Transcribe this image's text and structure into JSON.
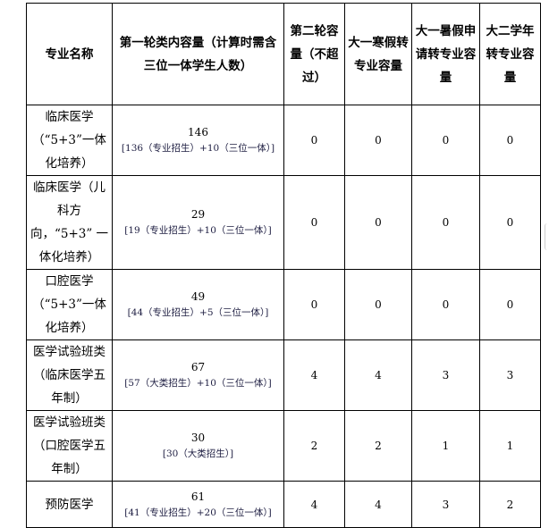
{
  "headers": [
    "专业名称",
    "第一轮类内容量（计算时需含三位一体学生人数）",
    "第二轮容量（不超过）",
    "大一寒假转专业容量",
    "大一暑假申请转专业容量",
    "大二学年转专业容量"
  ],
  "rows": [
    {
      "name": "临床医学（“5+3”一体化培养）",
      "total": "146",
      "breakdown": "[136（专业招生）+10（三位一体）]",
      "r2": "0",
      "winter": "0",
      "summer": "0",
      "year2": "0"
    },
    {
      "name": "临床医学（儿科方向，“5+3” 一体化培养）",
      "total": "29",
      "breakdown": "[19（专业招生）+10（三位一体）]",
      "r2": "0",
      "winter": "0",
      "summer": "0",
      "year2": "0"
    },
    {
      "name": "口腔医学（“5+3”一体化培养）",
      "total": "49",
      "breakdown": "[44（专业招生）+5（三位一体）]",
      "r2": "0",
      "winter": "0",
      "summer": "0",
      "year2": "0"
    },
    {
      "name": "医学试验班类（临床医学五年制）",
      "total": "67",
      "breakdown": "[57（大类招生）+10（三位一体）]",
      "r2": "4",
      "winter": "4",
      "summer": "3",
      "year2": "3"
    },
    {
      "name": "医学试验班类（口腔医学五年制）",
      "total": "30",
      "breakdown": "[30（大类招生）]",
      "r2": "2",
      "winter": "2",
      "summer": "1",
      "year2": "1"
    },
    {
      "name": "预防医学",
      "total": "61",
      "breakdown": "[41（专业招生）+20（三位一体）]",
      "r2": "4",
      "winter": "4",
      "summer": "3",
      "year2": "2"
    }
  ]
}
